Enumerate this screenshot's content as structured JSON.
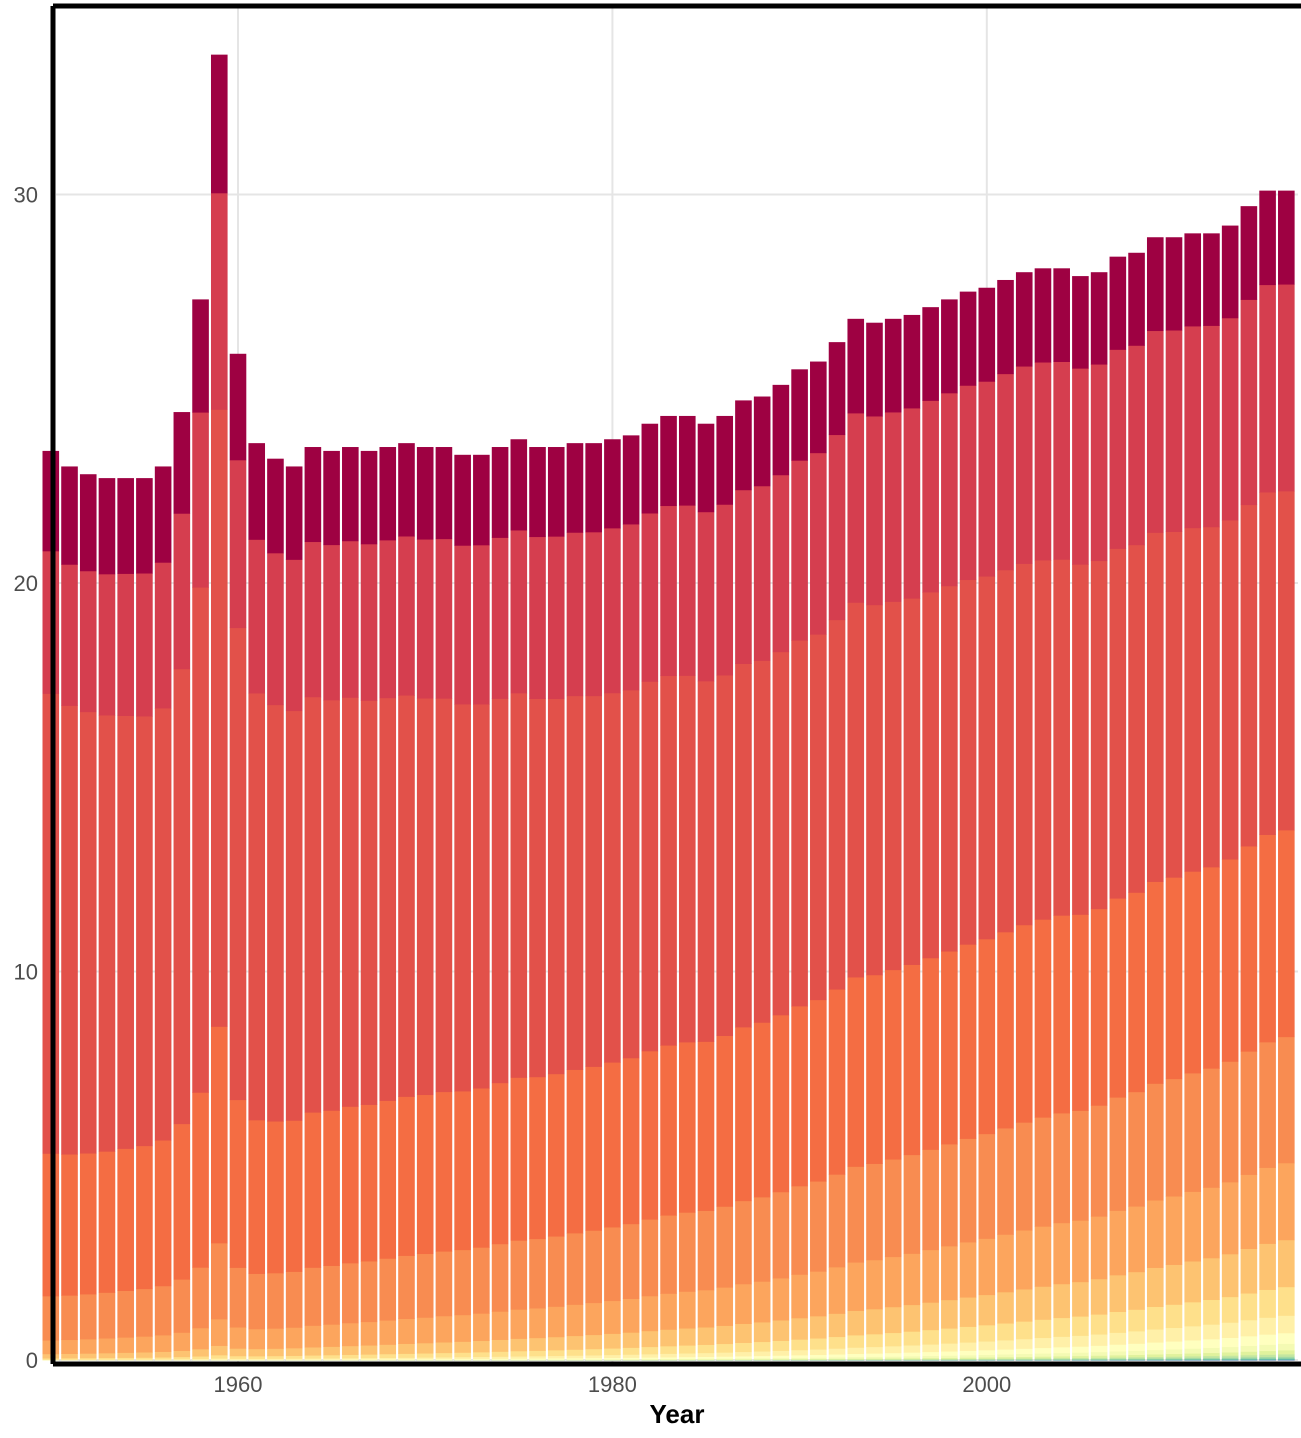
{
  "chart_data": {
    "type": "bar",
    "stacked": true,
    "xlabel": "Year",
    "ylabel": "",
    "xlim": [
      1950,
      2016
    ],
    "ylim": [
      0,
      35
    ],
    "x_ticks": [
      {
        "value": 1960,
        "label": "1960"
      },
      {
        "value": 1980,
        "label": "1980"
      },
      {
        "value": 2000,
        "label": "2000"
      }
    ],
    "y_ticks": [
      {
        "value": 0,
        "label": "0"
      },
      {
        "value": 10,
        "label": "10"
      },
      {
        "value": 20,
        "label": "20"
      },
      {
        "value": 30,
        "label": "30"
      }
    ],
    "grid": true,
    "legend": "none",
    "stack_colors": [
      "#5e4fa2",
      "#3288bd",
      "#4a9fb8",
      "#5fbaa8",
      "#80cba4",
      "#a2d9a4",
      "#c3e6a0",
      "#e0f29d",
      "#f4fab3",
      "#ffffbf",
      "#fff0a8",
      "#fee08b",
      "#fdc371",
      "#fca55d",
      "#f88c51",
      "#f46d43",
      "#e2514a",
      "#d53e4f",
      "#9e0142"
    ],
    "x": [
      1950,
      1951,
      1952,
      1953,
      1954,
      1955,
      1956,
      1957,
      1958,
      1959,
      1960,
      1961,
      1962,
      1963,
      1964,
      1965,
      1966,
      1967,
      1968,
      1969,
      1970,
      1971,
      1972,
      1973,
      1974,
      1975,
      1976,
      1977,
      1978,
      1979,
      1980,
      1981,
      1982,
      1983,
      1984,
      1985,
      1986,
      1987,
      1988,
      1989,
      1990,
      1991,
      1992,
      1993,
      1994,
      1995,
      1996,
      1997,
      1998,
      1999,
      2000,
      2001,
      2002,
      2003,
      2004,
      2005,
      2006,
      2007,
      2008,
      2009,
      2010,
      2011,
      2012,
      2013,
      2014,
      2015,
      2016
    ],
    "totals": [
      23.4,
      23.0,
      22.8,
      22.7,
      22.7,
      22.7,
      23.0,
      24.4,
      27.3,
      33.6,
      25.9,
      23.6,
      23.2,
      23.0,
      23.5,
      23.4,
      23.5,
      23.4,
      23.5,
      23.6,
      23.5,
      23.5,
      23.3,
      23.3,
      23.5,
      23.7,
      23.5,
      23.5,
      23.6,
      23.6,
      23.7,
      23.8,
      24.1,
      24.3,
      24.3,
      24.1,
      24.3,
      24.7,
      24.8,
      25.1,
      25.5,
      25.7,
      26.2,
      26.8,
      26.7,
      26.8,
      26.9,
      27.1,
      27.3,
      27.5,
      27.6,
      27.8,
      28.0,
      28.1,
      28.1,
      27.9,
      28.0,
      28.4,
      28.5,
      28.9,
      28.9,
      29.0,
      29.0,
      29.2,
      29.7,
      30.1,
      30.1
    ]
  }
}
